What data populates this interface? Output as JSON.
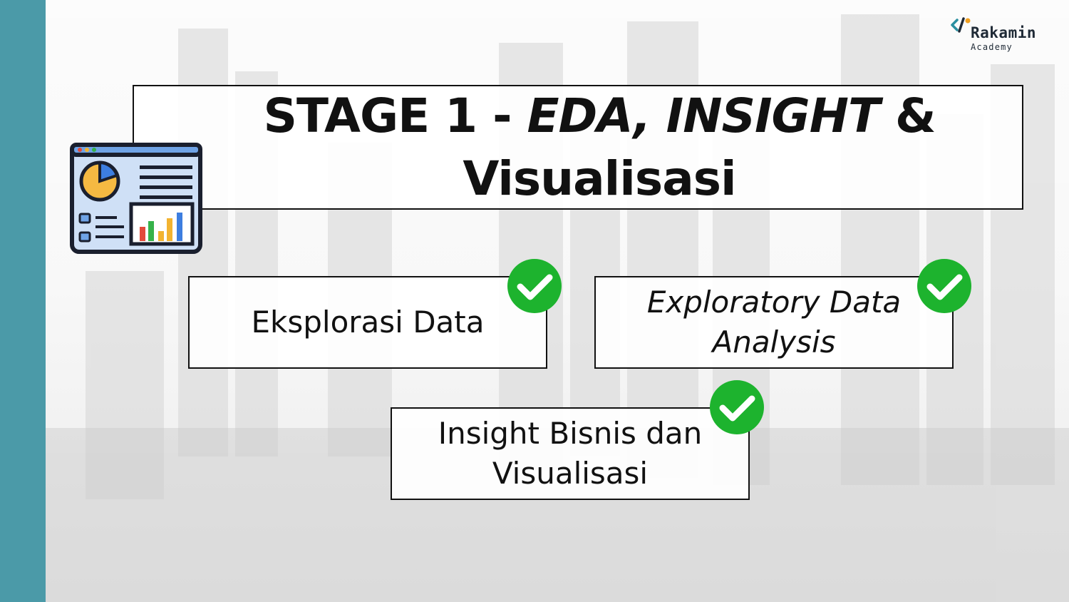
{
  "logo": {
    "name": "Rakamin",
    "sub": "Academy"
  },
  "title": {
    "part1": "STAGE 1 - ",
    "part2": "EDA, INSIGHT",
    "part3": " &",
    "line2": "Visualisasi"
  },
  "cards": [
    {
      "label": "Eksplorasi Data"
    },
    {
      "label": "Exploratory Data Analysis"
    },
    {
      "label": "Insight Bisnis dan Visualisasi"
    }
  ],
  "colors": {
    "side_bar": "#4b9aa8",
    "check": "#1db32e"
  },
  "icons": {
    "dashboard": "dashboard-icon",
    "check": "check-circle-icon"
  }
}
